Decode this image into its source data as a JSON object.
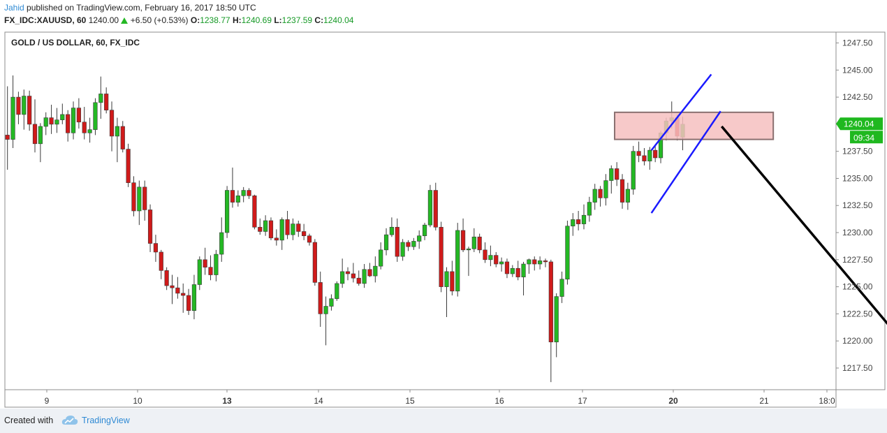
{
  "header": {
    "author": "Jahid",
    "published_text": " published on TradingView.com, February 16, 2017 18:50 UTC",
    "symbol": "FX_IDC:XAUUSD, 60",
    "last": "1240.00",
    "change_icon": "triangle-up-icon",
    "change": "+6.50 (+0.53%)",
    "o_label": "O:",
    "o_value": "1238.77",
    "h_label": "H:",
    "h_value": "1240.69",
    "l_label": "L:",
    "l_value": "1237.59",
    "c_label": "C:",
    "c_value": "1240.04"
  },
  "footer": {
    "created_with": "Created with",
    "brand": "TradingView",
    "brand_icon": "tradingview-cloud-icon"
  },
  "colors": {
    "up": "#24b824",
    "down": "#d01a1a",
    "accent": "#2f8ad4",
    "channel": "#1a1aff",
    "zone_fill": "#f6c0c0",
    "zone_border": "#8a7070",
    "price_tag": "#1fb81f"
  },
  "chart_data": {
    "type": "candlestick",
    "title": "GOLD / US DOLLAR, 60, FX_IDC",
    "ylim": [
      1215.5,
      1248.5
    ],
    "yticks": [
      "1247.50",
      "1245.00",
      "1242.50",
      "1240.00",
      "1237.50",
      "1235.00",
      "1232.50",
      "1230.00",
      "1227.50",
      "1225.00",
      "1222.50",
      "1220.00",
      "1217.50"
    ],
    "xticks": [
      {
        "label": "9",
        "bold": false
      },
      {
        "label": "10",
        "bold": false
      },
      {
        "label": "13",
        "bold": true
      },
      {
        "label": "14",
        "bold": false
      },
      {
        "label": "15",
        "bold": false
      },
      {
        "label": "16",
        "bold": false
      },
      {
        "label": "17",
        "bold": false
      },
      {
        "label": "20",
        "bold": true
      },
      {
        "label": "21",
        "bold": false
      },
      {
        "label": "18:0",
        "bold": false
      }
    ],
    "grid": false,
    "last_price_label": "1240.04",
    "countdown_label": "09:34",
    "day_index": [
      9,
      10,
      13,
      14,
      15,
      16,
      17,
      20,
      21
    ],
    "candles": [
      [
        0,
        1239,
        1243.5,
        1235.8,
        1238.6
      ],
      [
        1,
        1238.6,
        1244.5,
        1237.8,
        1242.5
      ],
      [
        2,
        1242.5,
        1243,
        1240,
        1240.9
      ],
      [
        3,
        1240.9,
        1243.2,
        1239.5,
        1242.6
      ],
      [
        4,
        1242.6,
        1243.1,
        1239.4,
        1240
      ],
      [
        5,
        1240,
        1242.3,
        1237.4,
        1238.2
      ],
      [
        6,
        1238.2,
        1240.1,
        1236.5,
        1239.8
      ],
      [
        7,
        1239.8,
        1241.1,
        1239,
        1240.6
      ],
      [
        8,
        1240.6,
        1241.8,
        1239.1,
        1240
      ],
      [
        9,
        1240,
        1241.5,
        1239.2,
        1240.4
      ],
      [
        10,
        1240.4,
        1241.9,
        1240,
        1240.9
      ],
      [
        11,
        1240.9,
        1241.3,
        1238.4,
        1239.2
      ],
      [
        12,
        1239.2,
        1242.1,
        1238.6,
        1241.5
      ],
      [
        13,
        1241.5,
        1242.4,
        1239.6,
        1240.2
      ],
      [
        14,
        1240.2,
        1241.6,
        1238.6,
        1239.2
      ],
      [
        15,
        1239.2,
        1240.6,
        1238.3,
        1239.5
      ],
      [
        16,
        1239.5,
        1242.4,
        1239,
        1242
      ],
      [
        17,
        1242,
        1244.4,
        1240.5,
        1242.8
      ],
      [
        18,
        1242.8,
        1243.4,
        1241,
        1241.3
      ],
      [
        19,
        1241.3,
        1242.1,
        1237.5,
        1238.9
      ],
      [
        20,
        1238.9,
        1240.6,
        1236.5,
        1239.8
      ],
      [
        21,
        1239.8,
        1240.3,
        1237.4,
        1237.7
      ],
      [
        22,
        1237.7,
        1238.2,
        1234.2,
        1234.6
      ],
      [
        23,
        1234.6,
        1235.2,
        1231.5,
        1232
      ],
      [
        24,
        1232,
        1234.8,
        1230.7,
        1234.2
      ],
      [
        25,
        1234.2,
        1234.8,
        1231.1,
        1232.1
      ],
      [
        26,
        1232.1,
        1232.6,
        1228.2,
        1229
      ],
      [
        27,
        1229,
        1229.8,
        1227.3,
        1228.2
      ],
      [
        28,
        1228.2,
        1228.4,
        1225.7,
        1226.5
      ],
      [
        29,
        1226.5,
        1226.8,
        1224.7,
        1225.1
      ],
      [
        30,
        1225.1,
        1226.1,
        1223.4,
        1224.9
      ],
      [
        31,
        1224.9,
        1225.9,
        1223.9,
        1224.4
      ],
      [
        32,
        1224.4,
        1225.3,
        1222.6,
        1224.2
      ],
      [
        33,
        1224.2,
        1224.8,
        1222.4,
        1222.8
      ],
      [
        34,
        1222.8,
        1226.1,
        1222,
        1225.2
      ],
      [
        35,
        1225.2,
        1227.8,
        1224.7,
        1227.5
      ],
      [
        36,
        1227.5,
        1228.6,
        1226.1,
        1226.8
      ],
      [
        37,
        1226.8,
        1227.9,
        1225.6,
        1226.1
      ],
      [
        38,
        1226.1,
        1228.4,
        1225.5,
        1228
      ],
      [
        39,
        1228,
        1231.4,
        1227.3,
        1230
      ],
      [
        40,
        1230,
        1234.3,
        1229.5,
        1233.9
      ],
      [
        41,
        1233.9,
        1236,
        1232.3,
        1232.8
      ],
      [
        42,
        1232.8,
        1233.9,
        1232.4,
        1233.4
      ],
      [
        43,
        1233.4,
        1234.2,
        1232.8,
        1233.9
      ],
      [
        44,
        1233.9,
        1234.1,
        1233.1,
        1233.4
      ],
      [
        45,
        1233.4,
        1233.5,
        1230.3,
        1230.5
      ],
      [
        46,
        1230.5,
        1231.3,
        1229.8,
        1230.1
      ],
      [
        47,
        1230.1,
        1231.6,
        1229.7,
        1231.1
      ],
      [
        48,
        1231.1,
        1231.4,
        1229.3,
        1229.5
      ],
      [
        49,
        1229.5,
        1230.3,
        1228.8,
        1229.3
      ],
      [
        50,
        1229.3,
        1231.4,
        1228.4,
        1231.2
      ],
      [
        51,
        1231.2,
        1232,
        1229.4,
        1229.8
      ],
      [
        52,
        1229.8,
        1231.3,
        1229.3,
        1230.8
      ],
      [
        53,
        1230.8,
        1231.1,
        1229.6,
        1230.1
      ],
      [
        54,
        1230.1,
        1230.8,
        1229.3,
        1229.7
      ],
      [
        55,
        1229.7,
        1229.9,
        1228.8,
        1229.1
      ],
      [
        56,
        1229.1,
        1229.4,
        1225.1,
        1225.4
      ],
      [
        57,
        1225.4,
        1226.4,
        1221.3,
        1222.5
      ],
      [
        58,
        1222.5,
        1224.1,
        1219.6,
        1223.2
      ],
      [
        59,
        1223.2,
        1224.3,
        1222.8,
        1223.9
      ],
      [
        60,
        1223.9,
        1225.5,
        1223.7,
        1225.3
      ],
      [
        61,
        1225.3,
        1227.6,
        1224.9,
        1226.4
      ],
      [
        62,
        1226.4,
        1226.8,
        1225.6,
        1226.2
      ],
      [
        63,
        1226.2,
        1227.2,
        1225.4,
        1225.8
      ],
      [
        64,
        1225.8,
        1226.5,
        1225.1,
        1225.3
      ],
      [
        65,
        1225.3,
        1227.1,
        1224.9,
        1226.6
      ],
      [
        66,
        1226.6,
        1227.2,
        1225.9,
        1226
      ],
      [
        67,
        1226,
        1227.8,
        1225.4,
        1226.9
      ],
      [
        68,
        1226.9,
        1229.1,
        1226.6,
        1228.4
      ],
      [
        69,
        1228.4,
        1230.4,
        1227.9,
        1229.8
      ],
      [
        70,
        1229.8,
        1231.4,
        1229.6,
        1230.5
      ],
      [
        71,
        1230.5,
        1231.3,
        1227.3,
        1227.8
      ],
      [
        72,
        1227.8,
        1229.4,
        1227.4,
        1229.1
      ],
      [
        73,
        1229.1,
        1229.3,
        1228.3,
        1228.7
      ],
      [
        74,
        1228.7,
        1229.5,
        1228.4,
        1229.2
      ],
      [
        75,
        1229.2,
        1230.2,
        1228.5,
        1229.7
      ],
      [
        76,
        1229.7,
        1230.9,
        1229.3,
        1230.7
      ],
      [
        77,
        1230.7,
        1234.4,
        1230.5,
        1233.9
      ],
      [
        78,
        1233.9,
        1234.6,
        1230.2,
        1230.5
      ],
      [
        79,
        1230.5,
        1231,
        1224.5,
        1225
      ],
      [
        80,
        1225,
        1226.8,
        1222.2,
        1226.4
      ],
      [
        81,
        1226.4,
        1227.4,
        1224.2,
        1224.6
      ],
      [
        82,
        1224.6,
        1230.9,
        1224.1,
        1230.2
      ],
      [
        83,
        1230.2,
        1231.3,
        1228.2,
        1228.4
      ],
      [
        84,
        1228.4,
        1228.7,
        1226,
        1228.5
      ],
      [
        85,
        1228.5,
        1230.4,
        1228.2,
        1229.6
      ],
      [
        86,
        1229.6,
        1229.9,
        1228.1,
        1228.4
      ],
      [
        87,
        1228.4,
        1229.1,
        1227.2,
        1227.5
      ],
      [
        88,
        1227.5,
        1228.8,
        1226.9,
        1227.9
      ],
      [
        89,
        1227.9,
        1228.2,
        1226.8,
        1227.1
      ],
      [
        90,
        1227.1,
        1227.7,
        1226.4,
        1227.3
      ],
      [
        91,
        1227.3,
        1227.6,
        1225.8,
        1226.2
      ],
      [
        92,
        1226.2,
        1227,
        1225.9,
        1226.7
      ],
      [
        93,
        1226.7,
        1227.4,
        1225.6,
        1225.9
      ],
      [
        94,
        1225.9,
        1227.3,
        1224.2,
        1227.1
      ],
      [
        95,
        1227.1,
        1227.6,
        1226.2,
        1227.5
      ],
      [
        96,
        1227.5,
        1227.8,
        1226.5,
        1227.1
      ],
      [
        97,
        1227.1,
        1227.8,
        1226.6,
        1227.4
      ],
      [
        98,
        1227.4,
        1227.6,
        1226.8,
        1227.3
      ],
      [
        99,
        1227.3,
        1227.5,
        1216.2,
        1219.9
      ],
      [
        100,
        1219.9,
        1224.4,
        1218.5,
        1224.1
      ],
      [
        101,
        1224.1,
        1226.4,
        1223.5,
        1225.7
      ],
      [
        102,
        1225.7,
        1231.1,
        1225.2,
        1230.6
      ],
      [
        103,
        1230.6,
        1231.8,
        1229.7,
        1231.2
      ],
      [
        104,
        1231.2,
        1232,
        1230.2,
        1230.8
      ],
      [
        105,
        1230.8,
        1232.6,
        1230.3,
        1231.6
      ],
      [
        106,
        1231.6,
        1233.3,
        1231,
        1232.8
      ],
      [
        107,
        1232.8,
        1234.5,
        1232.1,
        1234
      ],
      [
        108,
        1234,
        1234.3,
        1232.4,
        1233.2
      ],
      [
        109,
        1233.2,
        1235.4,
        1232.5,
        1234.8
      ],
      [
        110,
        1234.8,
        1236.2,
        1233.6,
        1235.9
      ],
      [
        111,
        1235.9,
        1236.5,
        1234.3,
        1234.9
      ],
      [
        112,
        1234.9,
        1235.4,
        1232.2,
        1232.8
      ],
      [
        113,
        1232.8,
        1234.6,
        1232.1,
        1234
      ],
      [
        114,
        1234,
        1238,
        1233.5,
        1237.5
      ],
      [
        115,
        1237.5,
        1238.4,
        1236.5,
        1237.1
      ],
      [
        116,
        1237.1,
        1237.8,
        1236.2,
        1236.6
      ],
      [
        117,
        1236.6,
        1237.9,
        1235.8,
        1237.6
      ],
      [
        118,
        1237.6,
        1238.1,
        1236.5,
        1236.9
      ],
      [
        119,
        1236.9,
        1239.4,
        1236.4,
        1239.2
      ],
      [
        120,
        1239.2,
        1240.6,
        1238.5,
        1240.3
      ],
      [
        121,
        1240.3,
        1242.1,
        1239.6,
        1240.6
      ],
      [
        122,
        1240.6,
        1240.9,
        1238.5,
        1238.9
      ],
      [
        123,
        1238.8,
        1240.7,
        1237.6,
        1240
      ]
    ],
    "annotations": {
      "channel_lines": [
        {
          "from": [
            117.3,
            1237.6
          ],
          "to": [
            128.2,
            1244.6
          ]
        },
        {
          "from": [
            117.3,
            1231.8
          ],
          "to": [
            129.9,
            1241.2
          ]
        }
      ],
      "resistance_zone": {
        "x_start": 110.6,
        "x_end": 139.5,
        "y_top": 1241.1,
        "y_bottom": 1238.6
      },
      "arrow": {
        "from": [
          130.1,
          1239.8
        ],
        "to": [
          168.6,
          1216.6
        ]
      }
    }
  }
}
